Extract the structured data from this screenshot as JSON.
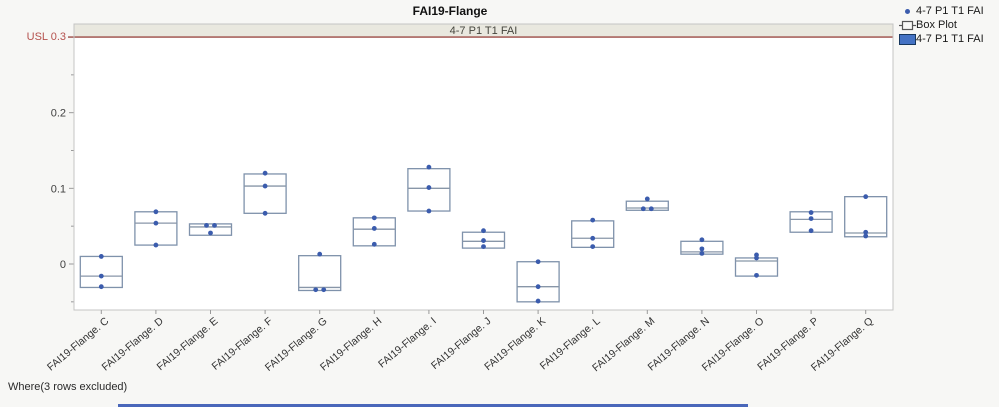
{
  "title": "FAI19-Flange",
  "band_label": "4-7 P1 T1 FAI",
  "usl": {
    "label": "USL 0.3",
    "value": 0.3
  },
  "where_note": "Where(3 rows excluded)",
  "legend": [
    {
      "icon": "point-marker-icon",
      "label": "4-7 P1 T1 FAI"
    },
    {
      "icon": "box-plot-icon",
      "label": "Box Plot"
    },
    {
      "icon": "filled-swatch-icon",
      "label": "4-7 P1 T1 FAI"
    }
  ],
  "colors": {
    "figure_bg": "#f7f7f5",
    "plot_bg": "#ffffff",
    "plot_border": "#c4c4c4",
    "band_bg": "#e9e8df",
    "usl_line": "#9c4a45",
    "usl_text": "#b5524e",
    "box_stroke": "#7f92ab",
    "median_stroke": "#8896a8",
    "point_fill": "#3b5cad",
    "tick": "#9a9a9a",
    "axis_text": "#404040",
    "legend_swatch": "#4472c4"
  },
  "chart_data": {
    "type": "box",
    "title": "FAI19-Flange",
    "series_label": "4-7 P1 T1 FAI",
    "ylabel": "",
    "xlabel": "",
    "ylim": [
      -0.0608,
      0.3172
    ],
    "yticks": [
      0,
      0.1,
      0.2
    ],
    "minor_yticks": [
      -0.05,
      0.05,
      0.15,
      0.25
    ],
    "usl": 0.3,
    "grid": false,
    "legend_position": "top-right",
    "categories": [
      "FAI19-Flange. C",
      "FAI19-Flange. D",
      "FAI19-Flange. E",
      "FAI19-Flange. F",
      "FAI19-Flange. G",
      "FAI19-Flange. H",
      "FAI19-Flange. I",
      "FAI19-Flange. J",
      "FAI19-Flange. K",
      "FAI19-Flange. L",
      "FAI19-Flange. M",
      "FAI19-Flange. N",
      "FAI19-Flange. O",
      "FAI19-Flange. P",
      "FAI19-Flange. Q"
    ],
    "boxes": [
      {
        "category": "FAI19-Flange. C",
        "q1": -0.031,
        "median": -0.016,
        "q3": 0.01,
        "points": [
          {
            "v": 0.01
          },
          {
            "v": -0.016
          },
          {
            "v": -0.03
          }
        ]
      },
      {
        "category": "FAI19-Flange. D",
        "q1": 0.025,
        "median": 0.054,
        "q3": 0.069,
        "points": [
          {
            "v": 0.069
          },
          {
            "v": 0.054
          },
          {
            "v": 0.025
          }
        ]
      },
      {
        "category": "FAI19-Flange. E",
        "q1": 0.038,
        "median": 0.049,
        "q3": 0.053,
        "points": [
          {
            "v": 0.051,
            "dx": -4
          },
          {
            "v": 0.051,
            "dx": 4
          },
          {
            "v": 0.041
          }
        ]
      },
      {
        "category": "FAI19-Flange. F",
        "q1": 0.067,
        "median": 0.103,
        "q3": 0.119,
        "points": [
          {
            "v": 0.12
          },
          {
            "v": 0.103
          },
          {
            "v": 0.067
          }
        ]
      },
      {
        "category": "FAI19-Flange. G",
        "q1": -0.035,
        "median": -0.031,
        "q3": 0.011,
        "points": [
          {
            "v": 0.013
          },
          {
            "v": -0.034,
            "dx": -4
          },
          {
            "v": -0.034,
            "dx": 4
          }
        ]
      },
      {
        "category": "FAI19-Flange. H",
        "q1": 0.024,
        "median": 0.046,
        "q3": 0.061,
        "points": [
          {
            "v": 0.061
          },
          {
            "v": 0.047
          },
          {
            "v": 0.026
          }
        ]
      },
      {
        "category": "FAI19-Flange. I",
        "q1": 0.07,
        "median": 0.1,
        "q3": 0.126,
        "points": [
          {
            "v": 0.128
          },
          {
            "v": 0.101
          },
          {
            "v": 0.07
          }
        ]
      },
      {
        "category": "FAI19-Flange. J",
        "q1": 0.021,
        "median": 0.03,
        "q3": 0.042,
        "points": [
          {
            "v": 0.044
          },
          {
            "v": 0.031
          },
          {
            "v": 0.023
          }
        ]
      },
      {
        "category": "FAI19-Flange. K",
        "q1": -0.05,
        "median": -0.03,
        "q3": 0.003,
        "points": [
          {
            "v": 0.003
          },
          {
            "v": -0.03
          },
          {
            "v": -0.049
          }
        ]
      },
      {
        "category": "FAI19-Flange. L",
        "q1": 0.022,
        "median": 0.034,
        "q3": 0.057,
        "points": [
          {
            "v": 0.058
          },
          {
            "v": 0.034
          },
          {
            "v": 0.023
          }
        ]
      },
      {
        "category": "FAI19-Flange. M",
        "q1": 0.071,
        "median": 0.074,
        "q3": 0.083,
        "points": [
          {
            "v": 0.086
          },
          {
            "v": 0.073,
            "dx": -4
          },
          {
            "v": 0.073,
            "dx": 4
          }
        ]
      },
      {
        "category": "FAI19-Flange. N",
        "q1": 0.013,
        "median": 0.016,
        "q3": 0.03,
        "points": [
          {
            "v": 0.032
          },
          {
            "v": 0.02
          },
          {
            "v": 0.014
          }
        ]
      },
      {
        "category": "FAI19-Flange. O",
        "q1": -0.016,
        "median": 0.004,
        "q3": 0.008,
        "points": [
          {
            "v": 0.012
          },
          {
            "v": 0.008
          },
          {
            "v": -0.015
          }
        ]
      },
      {
        "category": "FAI19-Flange. P",
        "q1": 0.042,
        "median": 0.059,
        "q3": 0.069,
        "points": [
          {
            "v": 0.068
          },
          {
            "v": 0.06
          },
          {
            "v": 0.044
          }
        ]
      },
      {
        "category": "FAI19-Flange. Q",
        "q1": 0.036,
        "median": 0.041,
        "q3": 0.089,
        "points": [
          {
            "v": 0.089
          },
          {
            "v": 0.042
          },
          {
            "v": 0.037
          }
        ]
      }
    ]
  }
}
